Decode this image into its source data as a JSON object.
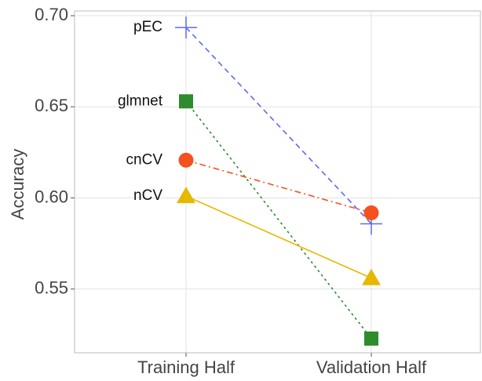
{
  "chart_data": {
    "type": "line",
    "y_label": "Accuracy",
    "categories": [
      "Training Half",
      "Validation Half"
    ],
    "series": [
      {
        "name": "pEC",
        "color": "#5a6af2",
        "linestyle": "dashed",
        "marker": "plus",
        "values": [
          0.6935,
          0.5858
        ]
      },
      {
        "name": "glmnet",
        "color": "#2e8b2e",
        "linestyle": "dotted",
        "marker": "square",
        "values": [
          0.653,
          0.5228
        ]
      },
      {
        "name": "cnCV",
        "color": "#f4511e",
        "linestyle": "dashdot",
        "marker": "circle",
        "values": [
          0.6207,
          0.5918
        ]
      },
      {
        "name": "nCV",
        "color": "#e6b800",
        "linestyle": "solid",
        "marker": "triangle",
        "values": [
          0.601,
          0.556
        ]
      }
    ],
    "ylim": [
      0.515,
      0.7026
    ],
    "yticks": [
      0.55,
      {
        "value": 0.6,
        "label": "0.60"
      },
      0.65,
      {
        "value": 0.7,
        "label": "0.70"
      }
    ],
    "grid": true
  }
}
